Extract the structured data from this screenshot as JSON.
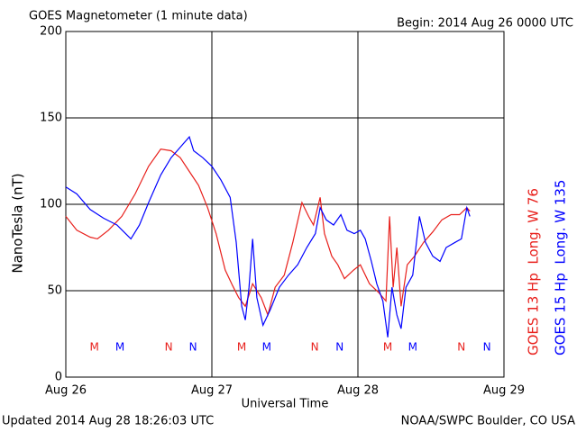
{
  "chart_data": {
    "type": "line",
    "title": "GOES Magnetometer (1 minute data)",
    "subtitle": "Begin:  2014 Aug 26 0000 UTC",
    "x_label": "Universal Time",
    "y_label": "NanoTesla (nT)",
    "footer_left": "Updated 2014 Aug 28 18:26:03 UTC",
    "footer_right": "NOAA/SWPC Boulder, CO USA",
    "xlim": [
      0,
      72
    ],
    "xticks": [
      {
        "value": 0,
        "label": "Aug 26"
      },
      {
        "value": 24,
        "label": "Aug 27"
      },
      {
        "value": 48,
        "label": "Aug 28"
      },
      {
        "value": 72,
        "label": "Aug 29"
      }
    ],
    "ylim": [
      0,
      200
    ],
    "yticks": [
      0,
      50,
      100,
      150,
      200
    ],
    "grid": true,
    "series": [
      {
        "name": "GOES 13 Hp  Long. W 76",
        "color": "#e8201c",
        "x": [
          0,
          1.8,
          4.0,
          5.2,
          7.0,
          9.2,
          11.4,
          13.6,
          15.6,
          17.3,
          18.8,
          20.3,
          21.8,
          23.3,
          24.7,
          26.2,
          27.4,
          28.4,
          29.5,
          30.7,
          32.1,
          33.2,
          34.4,
          35.9,
          37.3,
          38.8,
          39.9,
          40.7,
          41.8,
          42.5,
          43.7,
          44.7,
          45.8,
          47.3,
          48.4,
          49.9,
          51.4,
          52.6,
          53.2,
          53.8,
          54.4,
          55.1,
          56.1,
          57.3,
          58.8,
          60.3,
          61.8,
          63.3,
          64.7,
          65.9,
          66.4
        ],
        "values": [
          93,
          85,
          81,
          80,
          85,
          93,
          106,
          122,
          132,
          131,
          127,
          119,
          111,
          98,
          83,
          62,
          53,
          46,
          41,
          54,
          46,
          36,
          52,
          59,
          78,
          101,
          93,
          88,
          104,
          83,
          70,
          65,
          57,
          62,
          65,
          54,
          49,
          44,
          93,
          52,
          75,
          41,
          65,
          70,
          78,
          84,
          91,
          94,
          94,
          98,
          96
        ]
      },
      {
        "name": "GOES 15 Hp  Long. W 135",
        "color": "#0000ff",
        "x": [
          0,
          1.8,
          4.0,
          6.2,
          8.4,
          10.7,
          12.1,
          13.6,
          15.6,
          17.3,
          18.8,
          20.3,
          21.0,
          22.5,
          24.0,
          25.5,
          27.0,
          28.0,
          28.9,
          29.5,
          30.1,
          30.7,
          31.4,
          32.4,
          33.6,
          35.1,
          36.6,
          38.1,
          39.6,
          41.0,
          41.8,
          42.8,
          44.0,
          45.2,
          46.2,
          47.4,
          48.4,
          49.2,
          50.2,
          51.1,
          52.1,
          52.9,
          53.6,
          54.4,
          55.1,
          55.9,
          57.0,
          58.1,
          59.1,
          60.3,
          61.5,
          62.5,
          64.0,
          65.0,
          65.9,
          66.4
        ],
        "values": [
          110,
          106,
          97,
          92,
          88,
          80,
          88,
          101,
          117,
          127,
          133,
          139,
          131,
          127,
          122,
          114,
          104,
          78,
          41,
          33,
          52,
          80,
          46,
          30,
          39,
          52,
          59,
          65,
          75,
          83,
          98,
          91,
          88,
          94,
          85,
          83,
          85,
          80,
          67,
          54,
          44,
          23,
          52,
          36,
          28,
          52,
          59,
          93,
          78,
          70,
          67,
          75,
          78,
          80,
          98,
          93
        ]
      }
    ],
    "markers": [
      {
        "label": "M",
        "series": 0,
        "x": 4.7
      },
      {
        "label": "M",
        "series": 1,
        "x": 8.9
      },
      {
        "label": "N",
        "series": 0,
        "x": 16.9
      },
      {
        "label": "N",
        "series": 1,
        "x": 20.9
      },
      {
        "label": "M",
        "series": 0,
        "x": 28.9
      },
      {
        "label": "M",
        "series": 1,
        "x": 33.0
      },
      {
        "label": "N",
        "series": 0,
        "x": 40.9
      },
      {
        "label": "N",
        "series": 1,
        "x": 45.0
      },
      {
        "label": "M",
        "series": 0,
        "x": 52.9
      },
      {
        "label": "M",
        "series": 1,
        "x": 57.0
      },
      {
        "label": "N",
        "series": 0,
        "x": 65.0
      },
      {
        "label": "N",
        "series": 1,
        "x": 69.2
      }
    ]
  }
}
